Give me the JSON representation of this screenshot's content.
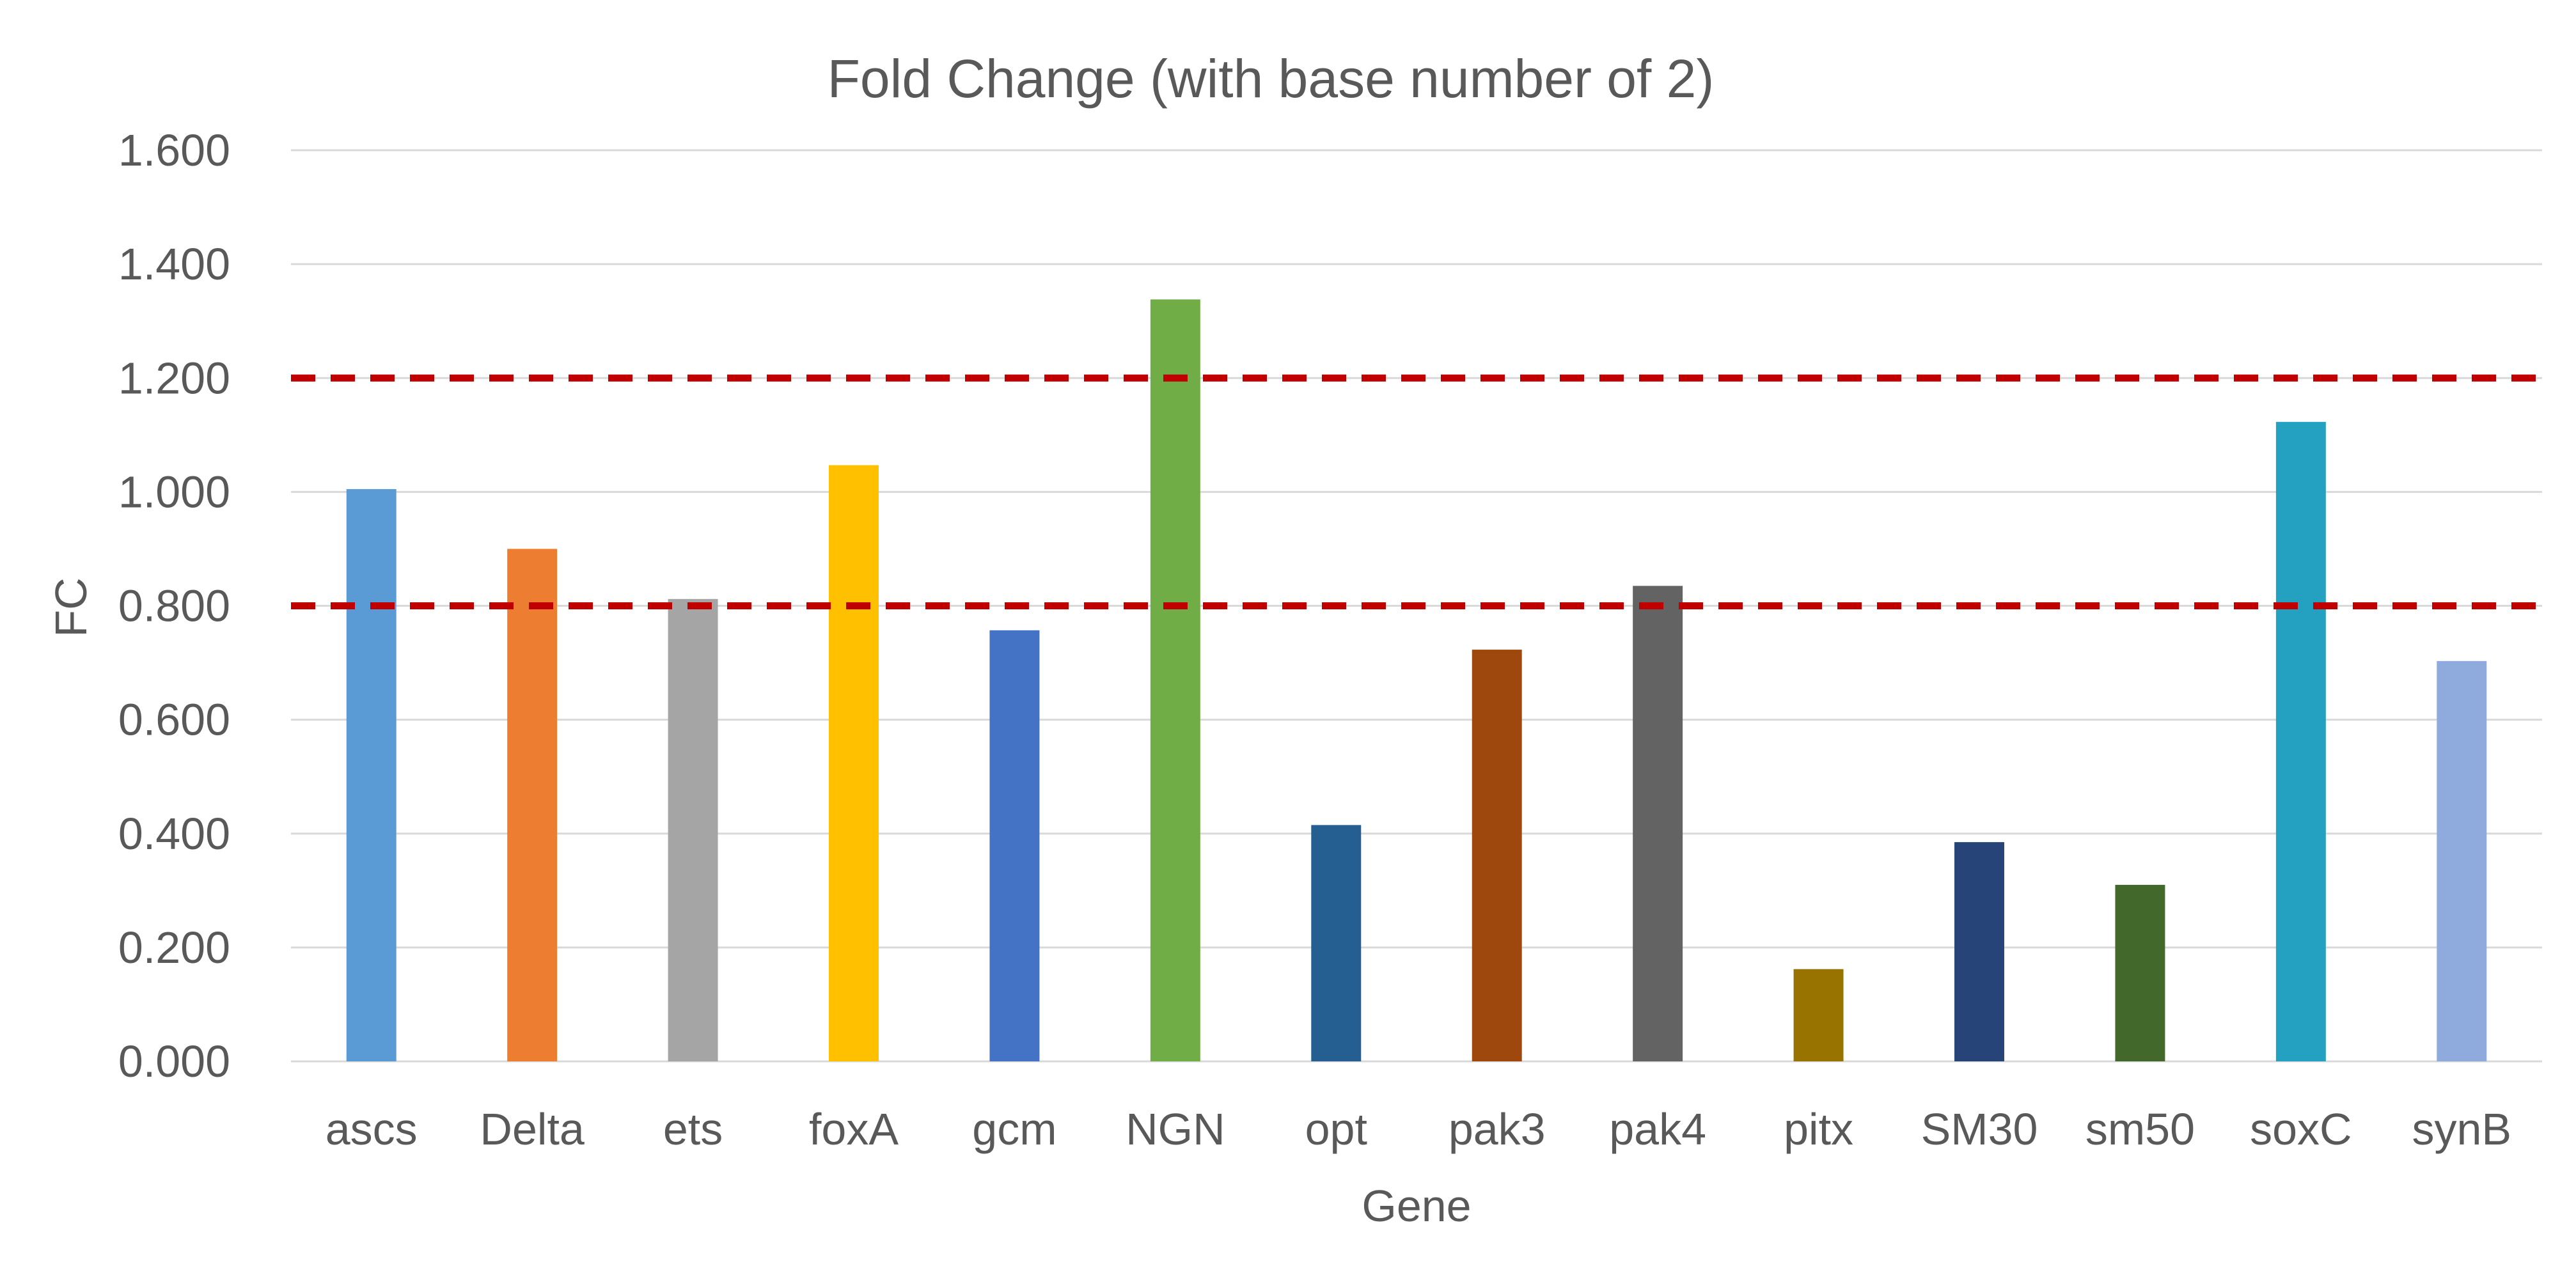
{
  "chart_data": {
    "type": "bar",
    "title": "Fold Change (with base number of 2)",
    "xlabel": "Gene",
    "ylabel": "FC",
    "ylim": [
      0,
      1.6
    ],
    "yticks": [
      "0.000",
      "0.200",
      "0.400",
      "0.600",
      "0.800",
      "1.000",
      "1.200",
      "1.400",
      "1.600"
    ],
    "grid": true,
    "legend": "none",
    "categories": [
      "ascs",
      "Delta",
      "ets",
      "foxA",
      "gcm",
      "NGN",
      "opt",
      "pak3",
      "pak4",
      "pitx",
      "SM30",
      "sm50",
      "soxC",
      "synB"
    ],
    "values": [
      1.005,
      0.9,
      0.812,
      1.047,
      0.757,
      1.338,
      0.415,
      0.723,
      0.835,
      0.162,
      0.385,
      0.31,
      1.123,
      0.703
    ],
    "bar_colors": [
      "#5b9bd5",
      "#ed7d31",
      "#a5a5a5",
      "#ffc000",
      "#4472c4",
      "#70ad47",
      "#255e91",
      "#9e480e",
      "#636363",
      "#997300",
      "#264478",
      "#43682b",
      "#24a0c0",
      "#8faadc"
    ],
    "reference_lines": [
      {
        "y": 0.8,
        "color": "#c00000",
        "style": "dashed"
      },
      {
        "y": 1.2,
        "color": "#c00000",
        "style": "dashed"
      }
    ],
    "gridline_color": "#d9d9d9",
    "text_color": "#595959"
  }
}
